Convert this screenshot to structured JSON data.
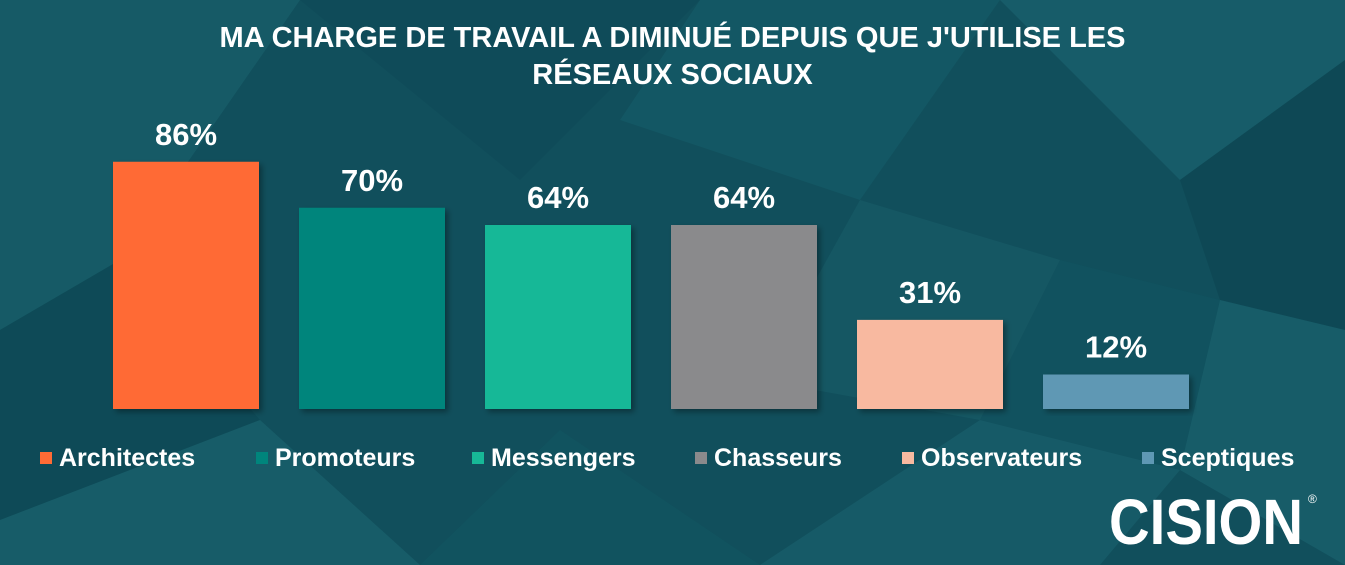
{
  "chart_data": {
    "type": "bar",
    "title": [
      "MA CHARGE DE TRAVAIL A DIMINUÉ DEPUIS QUE J'UTILISE LES",
      "RÉSEAUX SOCIAUX"
    ],
    "categories": [
      "Architectes",
      "Promoteurs",
      "Messengers",
      "Chasseurs",
      "Observateurs",
      "Sceptiques"
    ],
    "values": [
      86,
      70,
      64,
      64,
      31,
      12
    ],
    "value_labels": [
      "86%",
      "70%",
      "64%",
      "64%",
      "31%",
      "12%"
    ],
    "colors": [
      "#ff6b35",
      "#00857c",
      "#17b897",
      "#8a8a8c",
      "#f8b9a0",
      "#5f98b4"
    ],
    "ylim": [
      0,
      100
    ],
    "xlabel": "",
    "ylabel": "",
    "grid": false,
    "legend_position": "bottom"
  },
  "brand": {
    "logo_text": "CISION",
    "logo_mark": "®",
    "text_color": "#ffffff",
    "accent_color": "#f26d3d"
  }
}
